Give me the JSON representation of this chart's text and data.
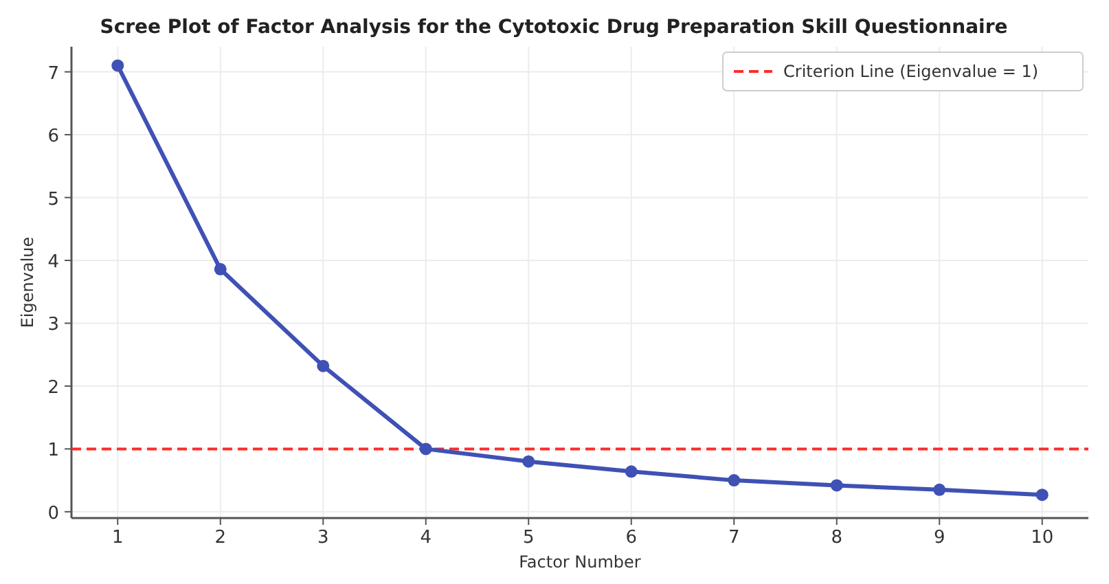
{
  "chart_data": {
    "type": "line",
    "title": "Scree Plot of Factor Analysis for the Cytotoxic Drug Preparation Skill Questionnaire",
    "xlabel": "Factor Number",
    "ylabel": "Eigenvalue",
    "x": [
      1,
      2,
      3,
      4,
      5,
      6,
      7,
      8,
      9,
      10
    ],
    "series": [
      {
        "color": "#3f51b5",
        "values": [
          7.1,
          3.86,
          2.32,
          1.0,
          0.8,
          0.64,
          0.5,
          0.42,
          0.35,
          0.27
        ]
      }
    ],
    "xlim": [
      0.55,
      10.45
    ],
    "xticks": [
      1,
      2,
      3,
      4,
      5,
      6,
      7,
      8,
      9,
      10
    ],
    "ylim": [
      -0.1,
      7.4
    ],
    "yticks": [
      0,
      1,
      2,
      3,
      4,
      5,
      6,
      7
    ],
    "ref_lines": [
      {
        "axis": "y",
        "value": 1,
        "label": "Criterion Line (Eigenvalue = 1)",
        "color": "#ff2a2a",
        "line_style": "dashed"
      }
    ],
    "grid": true,
    "legend": "top right",
    "marker": "circle",
    "line_style": "solid"
  }
}
